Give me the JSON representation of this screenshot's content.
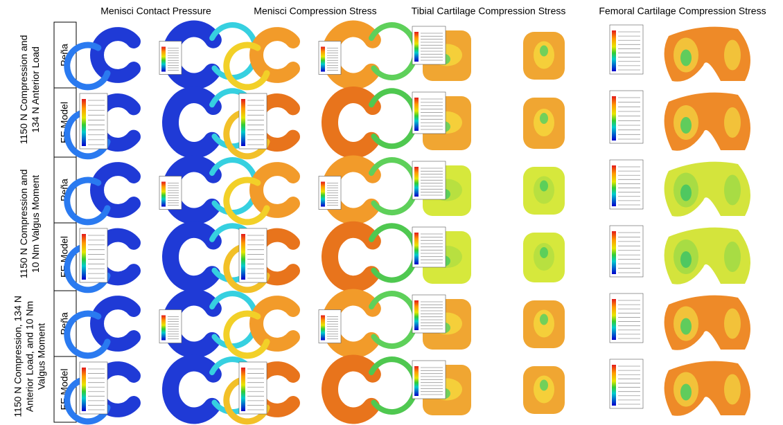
{
  "columns": [
    "Menisci Contact Pressure",
    "Menisci Compression Stress",
    "Tibial Cartilage Compression Stress",
    "Femoral Cartilage Compression Stress"
  ],
  "groups": [
    {
      "label_lines": [
        "1150 N Compression and",
        "134 N Anterior Load"
      ],
      "rows": [
        "Peña",
        "FE Model"
      ]
    },
    {
      "label_lines": [
        "1150 N Compression and",
        "10 Nm Valgus Moment"
      ],
      "rows": [
        "Peña",
        "FE Model"
      ]
    },
    {
      "label_lines": [
        "1150 N Compression, 134 N",
        "Anterior Load, and 10 Nm",
        "Valgus Moment"
      ],
      "rows": [
        "Peña",
        "FE Model"
      ]
    }
  ]
}
